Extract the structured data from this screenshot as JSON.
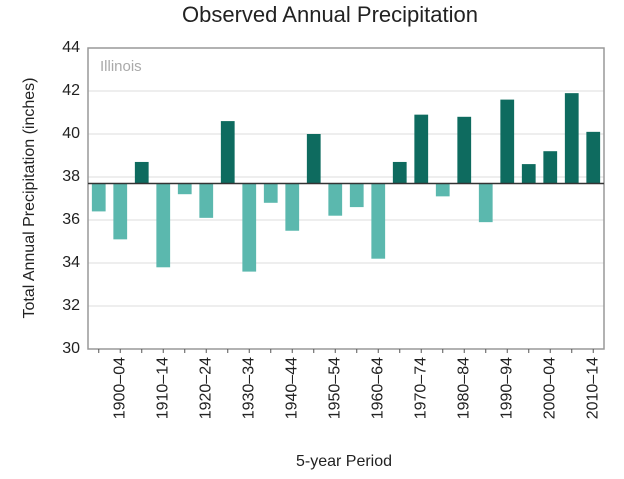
{
  "chart_data": {
    "type": "bar",
    "title": "Observed Annual Precipitation",
    "subtitle": "Illinois",
    "x_label": "5-year Period",
    "y_label": "Total Annual Precipitation (inches)",
    "categories": [
      null,
      "1900–04",
      null,
      "1910–14",
      null,
      "1920–24",
      null,
      "1930–34",
      null,
      "1940–44",
      null,
      "1950–54",
      null,
      "1960–64",
      null,
      "1970–74",
      null,
      "1980–84",
      null,
      "1990–94",
      null,
      "2000–04",
      null,
      "2010–14"
    ],
    "values": [
      36.4,
      35.1,
      38.7,
      33.8,
      37.2,
      36.1,
      40.6,
      33.6,
      36.8,
      35.5,
      40.0,
      36.2,
      36.6,
      34.2,
      38.7,
      40.9,
      37.1,
      40.8,
      35.9,
      41.6,
      38.6,
      39.2,
      41.9,
      40.1
    ],
    "baseline": 37.7,
    "color_above": "#0e6b5f",
    "color_below": "#5bb8ae",
    "ylim": [
      30,
      44
    ],
    "yticks": [
      30,
      32,
      34,
      36,
      38,
      40,
      42,
      44
    ],
    "grid": true
  }
}
